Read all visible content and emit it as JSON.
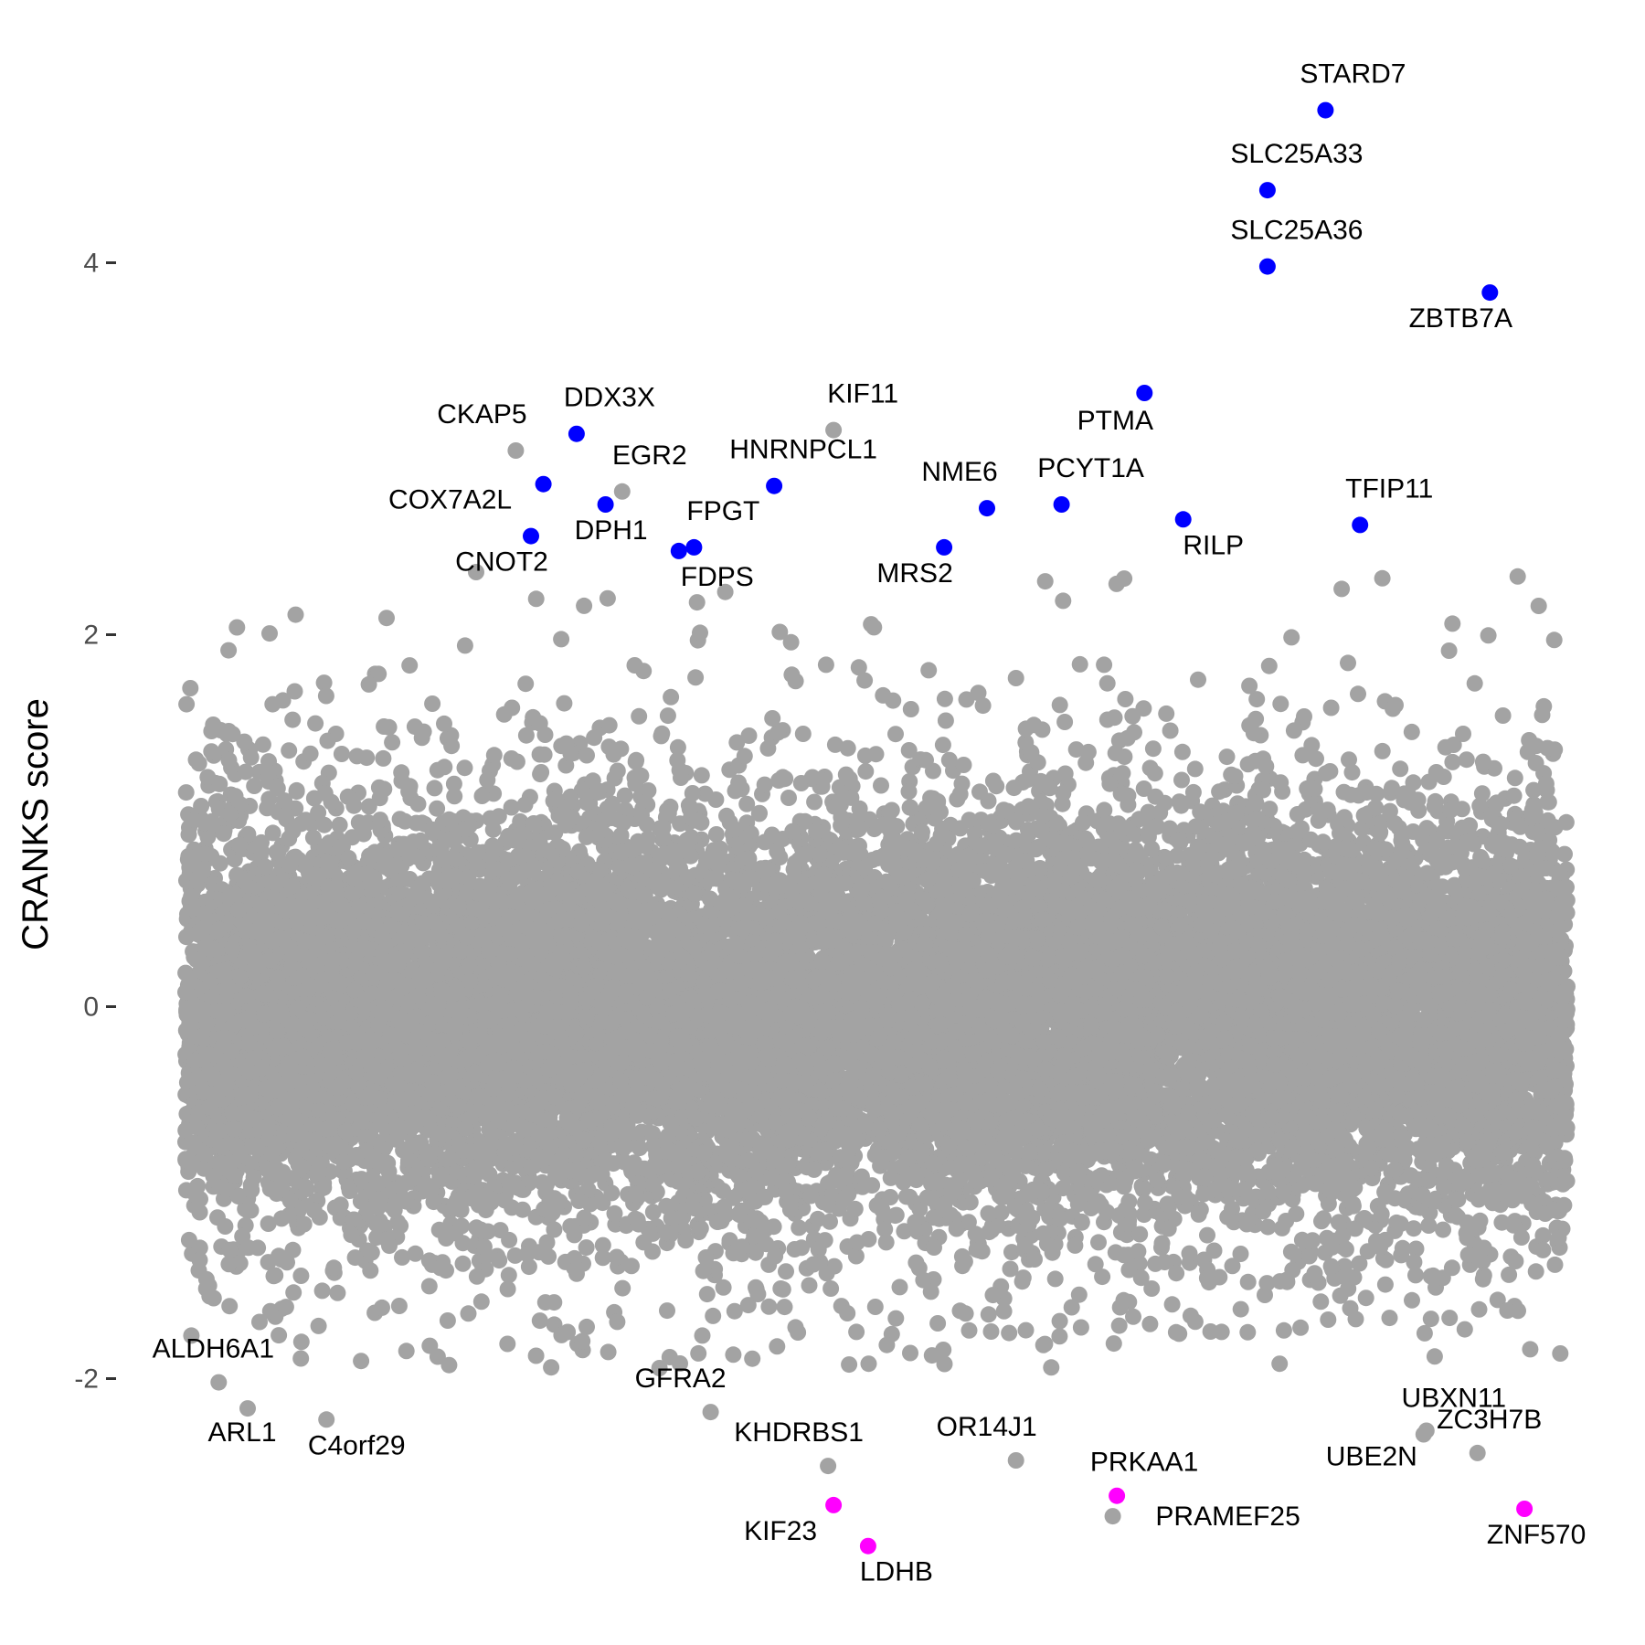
{
  "chart_data": {
    "type": "scatter",
    "title": "",
    "xlabel": "",
    "ylabel": "CRANKS score",
    "ylim": [
      -2.9,
      5.3
    ],
    "xlim": [
      0,
      1
    ],
    "y_ticks": [
      {
        "value": -2,
        "label": "-2"
      },
      {
        "value": 0,
        "label": "0"
      },
      {
        "value": 2,
        "label": "2"
      },
      {
        "value": 4,
        "label": "4"
      }
    ],
    "grid": false,
    "legend": "none",
    "background_color": "#ffffff",
    "background_point_color": "#a3a3a3",
    "background_point_count": 17000,
    "colors": {
      "top": "#0000ff",
      "bottom": "#ff00ff",
      "other": "#a3a3a3"
    },
    "labeled_points": [
      {
        "gene": "STARD7",
        "x": 0.825,
        "y": 4.82,
        "group": "top"
      },
      {
        "gene": "SLC25A33",
        "x": 0.783,
        "y": 4.39,
        "group": "top"
      },
      {
        "gene": "SLC25A36",
        "x": 0.783,
        "y": 3.98,
        "group": "top"
      },
      {
        "gene": "ZBTB7A",
        "x": 0.944,
        "y": 3.84,
        "group": "top"
      },
      {
        "gene": "PTMA",
        "x": 0.694,
        "y": 3.3,
        "group": "top"
      },
      {
        "gene": "DDX3X",
        "x": 0.283,
        "y": 3.08,
        "group": "top"
      },
      {
        "gene": "KIF11",
        "x": 0.469,
        "y": 3.1,
        "group": "other"
      },
      {
        "gene": "CKAP5",
        "x": 0.239,
        "y": 2.99,
        "group": "other"
      },
      {
        "gene": "COX7A2L",
        "x": 0.259,
        "y": 2.81,
        "group": "top"
      },
      {
        "gene": "EGR2",
        "x": 0.316,
        "y": 2.77,
        "group": "other"
      },
      {
        "gene": "HNRNPCL1",
        "x": 0.426,
        "y": 2.8,
        "group": "top"
      },
      {
        "gene": "DPH1",
        "x": 0.304,
        "y": 2.7,
        "group": "top"
      },
      {
        "gene": "NME6",
        "x": 0.58,
        "y": 2.68,
        "group": "top"
      },
      {
        "gene": "PCYT1A",
        "x": 0.634,
        "y": 2.7,
        "group": "top"
      },
      {
        "gene": "TFIP11",
        "x": 0.85,
        "y": 2.59,
        "group": "top"
      },
      {
        "gene": "RILP",
        "x": 0.722,
        "y": 2.62,
        "group": "top"
      },
      {
        "gene": "CNOT2",
        "x": 0.25,
        "y": 2.53,
        "group": "top"
      },
      {
        "gene": "FPGT",
        "x": 0.368,
        "y": 2.47,
        "group": "top"
      },
      {
        "gene": "FDPS",
        "x": 0.357,
        "y": 2.45,
        "group": "top"
      },
      {
        "gene": "MRS2",
        "x": 0.549,
        "y": 2.47,
        "group": "top"
      },
      {
        "gene": "ALDH6A1",
        "x": 0.024,
        "y": -2.02,
        "group": "other"
      },
      {
        "gene": "ARL1",
        "x": 0.045,
        "y": -2.16,
        "group": "other"
      },
      {
        "gene": "C4orf29",
        "x": 0.102,
        "y": -2.22,
        "group": "other"
      },
      {
        "gene": "GFRA2",
        "x": 0.38,
        "y": -2.18,
        "group": "other"
      },
      {
        "gene": "KHDRBS1",
        "x": 0.465,
        "y": -2.47,
        "group": "other"
      },
      {
        "gene": "OR14J1",
        "x": 0.601,
        "y": -2.44,
        "group": "other"
      },
      {
        "gene": "UBXN11",
        "x": 0.898,
        "y": -2.28,
        "group": "other"
      },
      {
        "gene": "UBE2N",
        "x": 0.896,
        "y": -2.3,
        "group": "other"
      },
      {
        "gene": "ZC3H7B",
        "x": 0.935,
        "y": -2.4,
        "group": "other"
      },
      {
        "gene": "KIF23",
        "x": 0.469,
        "y": -2.68,
        "group": "bottom"
      },
      {
        "gene": "LDHB",
        "x": 0.494,
        "y": -2.9,
        "group": "bottom"
      },
      {
        "gene": "PRKAA1",
        "x": 0.674,
        "y": -2.63,
        "group": "bottom"
      },
      {
        "gene": "PRAMEF25",
        "x": 0.671,
        "y": -2.74,
        "group": "other"
      },
      {
        "gene": "ZNF570",
        "x": 0.969,
        "y": -2.7,
        "group": "bottom"
      }
    ]
  }
}
